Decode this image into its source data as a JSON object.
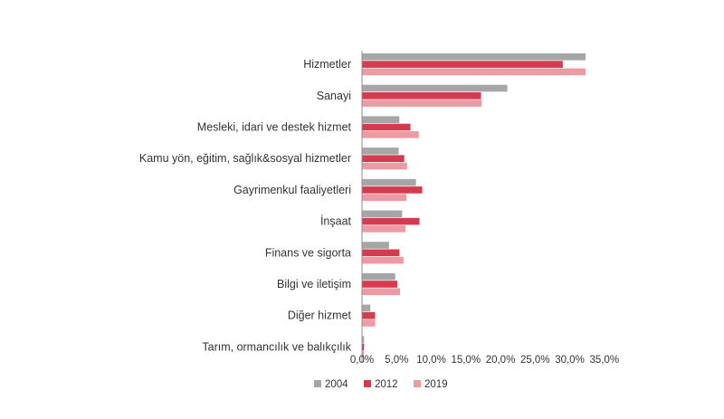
{
  "chart_data": {
    "type": "bar",
    "orientation": "horizontal",
    "categories": [
      "Hizmetler",
      "Sanayi",
      "Mesleki, idari ve destek hizmet",
      "Kamu yön, eğitim, sağlık&sosyal hizmetler",
      "Gayrimenkul faaliyetleri",
      "İnşaat",
      "Finans ve sigorta",
      "Bilgi ve iletişim",
      "Diğer hizmet",
      "Tarım, ormancılık ve balıkçılık"
    ],
    "series": [
      {
        "name": "2004",
        "color": "#a6a6a6",
        "values": [
          32.3,
          21.0,
          5.4,
          5.3,
          7.8,
          5.8,
          3.9,
          4.8,
          1.2,
          0.3
        ]
      },
      {
        "name": "2012",
        "color": "#d63a4e",
        "values": [
          29.0,
          17.2,
          7.0,
          6.1,
          8.7,
          8.3,
          5.4,
          5.1,
          1.9,
          0.3
        ]
      },
      {
        "name": "2019",
        "color": "#ee9aa3",
        "values": [
          32.3,
          17.3,
          8.2,
          6.5,
          6.4,
          6.3,
          6.0,
          5.5,
          1.9,
          0.3
        ]
      }
    ],
    "x_ticks": [
      "0,0%",
      "5,0%",
      "10,0%",
      "15,0%",
      "20,0%",
      "25,0%",
      "30,0%",
      "35,0%"
    ],
    "xlim": [
      0,
      35
    ],
    "title": "",
    "xlabel": "",
    "ylabel": "",
    "grid": false,
    "legend_position": "bottom"
  }
}
